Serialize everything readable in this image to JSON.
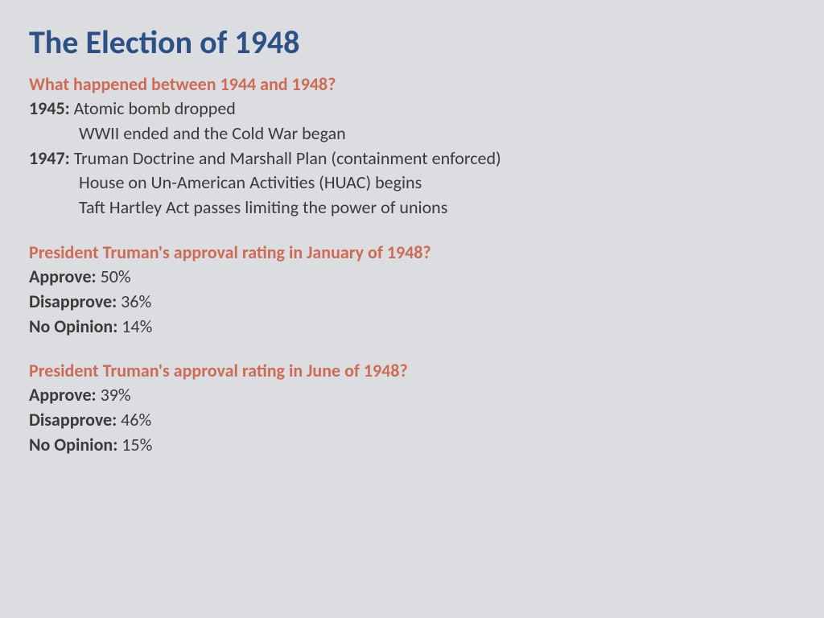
{
  "colors": {
    "background": "#dcdde0",
    "title": "#2d5186",
    "heading": "#cd6b57",
    "body": "#3a3a3a"
  },
  "typography": {
    "title_fontsize": 40,
    "heading_fontsize": 22,
    "body_fontsize": 22,
    "font_family": "Calibri"
  },
  "title": "The Election of 1948",
  "section1": {
    "heading": "What happened between 1944 and 1948?",
    "events": {
      "y1945_label": "1945:",
      "y1945_a": "Atomic bomb dropped",
      "y1945_b": "WWII ended and the Cold War began",
      "y1947_label": "1947:",
      "y1947_a": "Truman Doctrine and Marshall Plan (containment enforced)",
      "y1947_b": "House on Un-American Activities (HUAC) begins",
      "y1947_c": "Taft Hartley Act passes limiting the power of unions"
    }
  },
  "section2": {
    "heading": "President Truman's approval rating in January of 1948?",
    "approve_label": "Approve:",
    "approve_value": " 50%",
    "disapprove_label": "Disapprove:",
    "disapprove_value": " 36%",
    "noopinion_label": "No Opinion:",
    "noopinion_value": " 14%"
  },
  "section3": {
    "heading": "President Truman's approval rating in June of 1948?",
    "approve_label": "Approve:",
    "approve_value": " 39%",
    "disapprove_label": "Disapprove:",
    "disapprove_value": " 46%",
    "noopinion_label": "No Opinion:",
    "noopinion_value": " 15%"
  }
}
